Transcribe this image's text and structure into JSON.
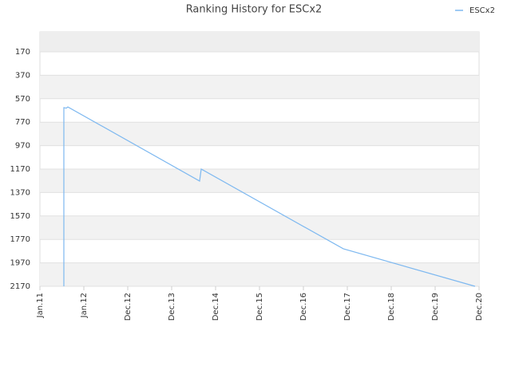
{
  "chart_data": {
    "type": "line",
    "title": "Ranking History for ESCx2",
    "series": [
      {
        "name": "ESCx2",
        "color": "#7db8f0",
        "x": [
          0.545,
          0.545,
          0.6,
          0.636,
          3.636,
          3.673,
          6.909,
          9.909
        ],
        "values": [
          2170,
          646,
          650,
          640,
          1272,
          1170,
          1850,
          2170
        ]
      }
    ],
    "xlim": [
      0,
      10
    ],
    "xticks": [
      {
        "value": 0,
        "label": "Jan.11"
      },
      {
        "value": 1,
        "label": "Jan.12"
      },
      {
        "value": 2,
        "label": "Dec.12"
      },
      {
        "value": 3,
        "label": "Dec.13"
      },
      {
        "value": 4,
        "label": "Dec.14"
      },
      {
        "value": 5,
        "label": "Dec.15"
      },
      {
        "value": 6,
        "label": "Dec.16"
      },
      {
        "value": 7,
        "label": "Dec.17"
      },
      {
        "value": 8,
        "label": "Dec.18"
      },
      {
        "value": 9,
        "label": "Dec.19"
      },
      {
        "value": 10,
        "label": "Dec.20"
      }
    ],
    "ylim": [
      2170,
      0
    ],
    "yticks": [
      170,
      370,
      570,
      770,
      970,
      1170,
      1370,
      1570,
      1770,
      1970,
      2170
    ],
    "grid": true,
    "legend": "top-right"
  }
}
